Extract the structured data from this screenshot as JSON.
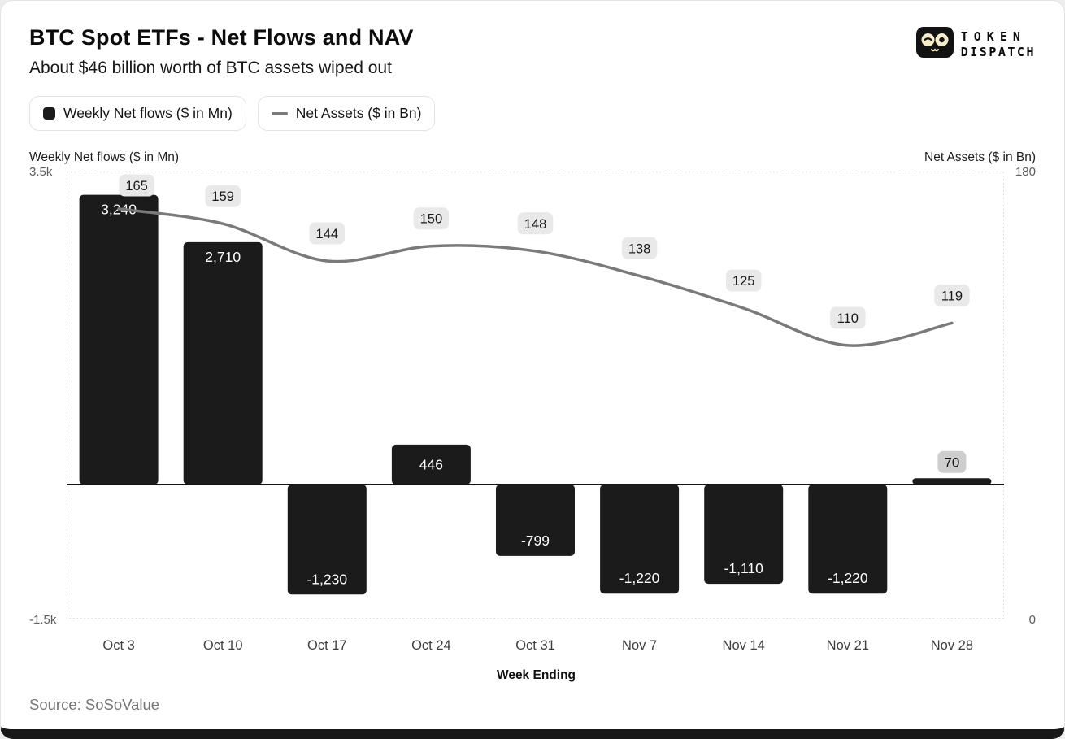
{
  "header": {
    "title": "BTC Spot ETFs - Net Flows and NAV",
    "subtitle": "About $46 billion worth of BTC assets wiped out"
  },
  "logo": {
    "line1": "TOKEN",
    "line2": "DISPATCH"
  },
  "legend": {
    "items": [
      {
        "label": "Weekly Net flows ($ in Mn)",
        "swatch": "square",
        "color": "#1c1b1b"
      },
      {
        "label": "Net Assets ($ in Bn)",
        "swatch": "line",
        "color": "#7a7a7a"
      }
    ]
  },
  "chart_data": {
    "type": "bar+line",
    "categories": [
      "Oct 3",
      "Oct 10",
      "Oct 17",
      "Oct 24",
      "Oct 31",
      "Nov 7",
      "Nov 14",
      "Nov 21",
      "Nov 28"
    ],
    "series": [
      {
        "name": "Weekly Net flows ($ in Mn)",
        "type": "bar",
        "axis": "left",
        "values": [
          3240,
          2710,
          -1230,
          446,
          -799,
          -1220,
          -1110,
          -1220,
          70
        ],
        "labels": [
          "3,240",
          "2,710",
          "-1,230",
          "446",
          "-799",
          "-1,220",
          "-1,110",
          "-1,220",
          "70"
        ]
      },
      {
        "name": "Net Assets ($ in Bn)",
        "type": "line",
        "axis": "right",
        "values": [
          165,
          159,
          144,
          150,
          148,
          138,
          125,
          110,
          119
        ],
        "labels": [
          "165",
          "159",
          "144",
          "150",
          "148",
          "138",
          "125",
          "110",
          "119"
        ]
      }
    ],
    "left_axis": {
      "title": "Weekly Net flows ($ in Mn)",
      "min": -1500,
      "max": 3500,
      "tick_labels": [
        "3.5k",
        "-1.5k"
      ]
    },
    "right_axis": {
      "title": "Net Assets ($ in Bn)",
      "min": 0,
      "max": 180,
      "tick_labels": [
        "180",
        "0"
      ]
    },
    "xlabel": "Week Ending",
    "grid": false,
    "legend_position": "top",
    "colors": {
      "bar": "#1c1b1b",
      "line": "#7a7a7a",
      "bar_label": "#ffffff",
      "line_label_bg": "#e9e9e9",
      "small_bar_chip_bg": "#cdcdcd",
      "zero_line": "#141414",
      "plot_border": "#d8d8d8",
      "x_label": "#3f3f3f"
    }
  },
  "footer": {
    "source": "Source: SoSoValue"
  }
}
